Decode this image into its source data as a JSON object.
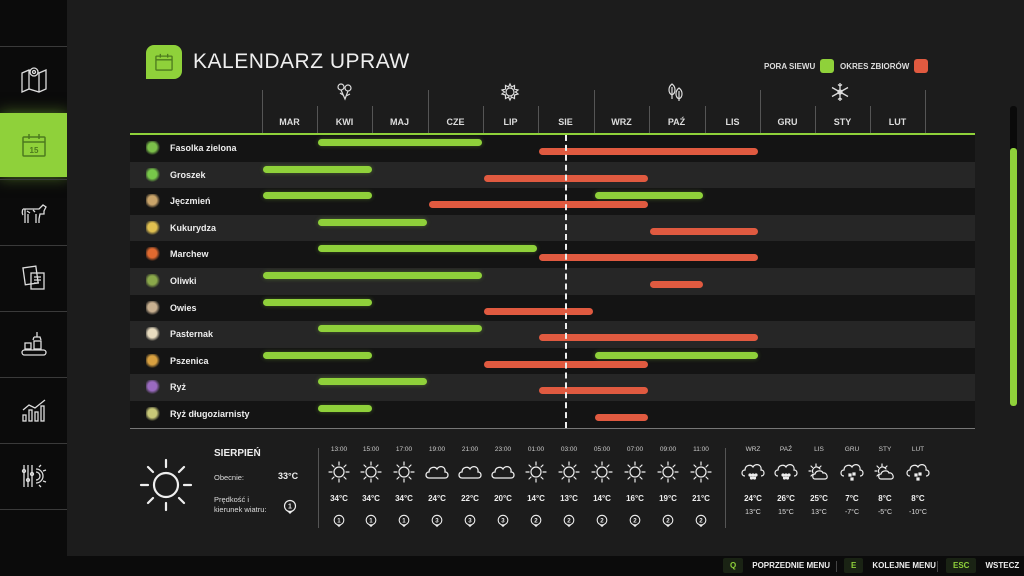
{
  "sidebar": {
    "items": [
      {
        "name": "map",
        "icon": "map-pin-icon",
        "active": false
      },
      {
        "name": "calendar",
        "icon": "calendar-icon",
        "active": true,
        "badge": "15"
      },
      {
        "name": "animals",
        "icon": "cow-icon",
        "active": false
      },
      {
        "name": "contracts",
        "icon": "documents-icon",
        "active": false
      },
      {
        "name": "production",
        "icon": "factory-conveyor-icon",
        "active": false
      },
      {
        "name": "statistics",
        "icon": "chart-icon",
        "active": false
      },
      {
        "name": "settings",
        "icon": "settings-sliders-icon",
        "active": false
      }
    ]
  },
  "header": {
    "title": "KALENDARZ UPRAW",
    "icon": "calendar-icon",
    "icon_day": "15"
  },
  "legend": {
    "sowing_label": "PORA SIEWU",
    "sowing_color": "#8fd13a",
    "harvest_label": "OKRES ZBIORÓW",
    "harvest_color": "#e05a40"
  },
  "seasons": [
    {
      "name": "spring",
      "icon": "flower-icon"
    },
    {
      "name": "summer",
      "icon": "sun-icon"
    },
    {
      "name": "autumn",
      "icon": "leaves-icon"
    },
    {
      "name": "winter",
      "icon": "snowflake-icon"
    }
  ],
  "months": [
    "MAR",
    "KWI",
    "MAJ",
    "CZE",
    "LIP",
    "SIE",
    "WRZ",
    "PAŹ",
    "LIS",
    "GRU",
    "STY",
    "LUT"
  ],
  "current_month_marker": "SIE",
  "crops": [
    {
      "name": "Fasolka zielona",
      "icon": "green-bean-icon",
      "sowing": [
        [
          1,
          4
        ]
      ],
      "harvest": [
        [
          5,
          9
        ]
      ]
    },
    {
      "name": "Groszek",
      "icon": "pea-icon",
      "sowing": [
        [
          0,
          2
        ]
      ],
      "harvest": [
        [
          4,
          7
        ]
      ]
    },
    {
      "name": "Jęczmień",
      "icon": "barley-icon",
      "sowing": [
        [
          0,
          2
        ],
        [
          6,
          8
        ]
      ],
      "harvest": [
        [
          3,
          7
        ]
      ]
    },
    {
      "name": "Kukurydza",
      "icon": "corn-icon",
      "sowing": [
        [
          1,
          3
        ]
      ],
      "harvest": [
        [
          7,
          9
        ]
      ]
    },
    {
      "name": "Marchew",
      "icon": "carrot-icon",
      "sowing": [
        [
          1,
          5
        ]
      ],
      "harvest": [
        [
          5,
          9
        ]
      ]
    },
    {
      "name": "Oliwki",
      "icon": "olive-icon",
      "sowing": [
        [
          0,
          4
        ]
      ],
      "harvest": [
        [
          7,
          8
        ]
      ]
    },
    {
      "name": "Owies",
      "icon": "oat-icon",
      "sowing": [
        [
          0,
          2
        ]
      ],
      "harvest": [
        [
          4,
          6
        ]
      ]
    },
    {
      "name": "Pasternak",
      "icon": "parsnip-icon",
      "sowing": [
        [
          1,
          4
        ]
      ],
      "harvest": [
        [
          5,
          9
        ]
      ]
    },
    {
      "name": "Pszenica",
      "icon": "wheat-icon",
      "sowing": [
        [
          0,
          2
        ],
        [
          6,
          9
        ]
      ],
      "harvest": [
        [
          4,
          7
        ]
      ]
    },
    {
      "name": "Ryż",
      "icon": "rice-icon",
      "sowing": [
        [
          1,
          3
        ]
      ],
      "harvest": [
        [
          5,
          7
        ]
      ]
    },
    {
      "name": "Ryż długoziarnisty",
      "icon": "long-rice-icon",
      "sowing": [
        [
          1,
          2
        ]
      ],
      "harvest": [
        [
          6,
          7
        ]
      ]
    }
  ],
  "weather": {
    "month": "SIERPIEŃ",
    "current_label": "Obecnie:",
    "current_temp": "33°C",
    "wind_label_1": "Prędkość i",
    "wind_label_2": "kierunek wiatru:",
    "wind_value": "1",
    "hourly": [
      {
        "time": "13:00",
        "icon": "sun-icon",
        "temp": "34°C",
        "wind": "1"
      },
      {
        "time": "15:00",
        "icon": "sun-icon",
        "temp": "34°C",
        "wind": "1"
      },
      {
        "time": "17:00",
        "icon": "sun-icon",
        "temp": "34°C",
        "wind": "1"
      },
      {
        "time": "19:00",
        "icon": "cloud-icon",
        "temp": "24°C",
        "wind": "3"
      },
      {
        "time": "21:00",
        "icon": "cloud-icon",
        "temp": "22°C",
        "wind": "3"
      },
      {
        "time": "23:00",
        "icon": "cloud-icon",
        "temp": "20°C",
        "wind": "3"
      },
      {
        "time": "01:00",
        "icon": "sun-icon",
        "temp": "14°C",
        "wind": "2"
      },
      {
        "time": "03:00",
        "icon": "sun-icon",
        "temp": "13°C",
        "wind": "2"
      },
      {
        "time": "05:00",
        "icon": "sun-icon",
        "temp": "14°C",
        "wind": "2"
      },
      {
        "time": "07:00",
        "icon": "sun-icon",
        "temp": "16°C",
        "wind": "2"
      },
      {
        "time": "09:00",
        "icon": "sun-icon",
        "temp": "19°C",
        "wind": "2"
      },
      {
        "time": "11:00",
        "icon": "sun-icon",
        "temp": "21°C",
        "wind": "2"
      }
    ],
    "monthly": [
      {
        "month": "WRZ",
        "icon": "rain-cloud-icon",
        "high": "24°C",
        "low": "13°C"
      },
      {
        "month": "PAŹ",
        "icon": "rain-cloud-icon",
        "high": "26°C",
        "low": "15°C"
      },
      {
        "month": "LIS",
        "icon": "partly-cloudy-icon",
        "high": "25°C",
        "low": "13°C"
      },
      {
        "month": "GRU",
        "icon": "snow-cloud-icon",
        "high": "7°C",
        "low": "-7°C"
      },
      {
        "month": "STY",
        "icon": "partly-cloudy-icon",
        "high": "8°C",
        "low": "-5°C"
      },
      {
        "month": "LUT",
        "icon": "snow-cloud-icon",
        "high": "8°C",
        "low": "-10°C"
      }
    ]
  },
  "footer": {
    "prev_key": "Q",
    "prev_label": "POPRZEDNIE MENU",
    "next_key": "E",
    "next_label": "KOLEJNE MENU",
    "back_key": "ESC",
    "back_label": "WSTECZ"
  }
}
